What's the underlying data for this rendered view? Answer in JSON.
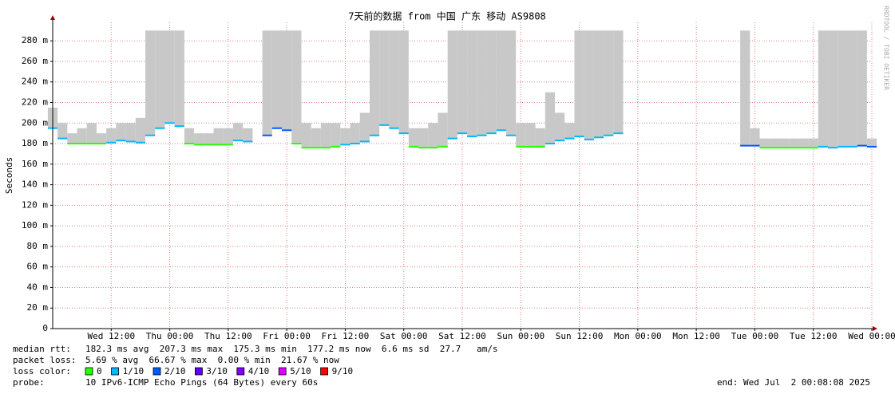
{
  "chart_data": {
    "type": "smokeping",
    "title": "7天前的数据 from 中国 广东 移动 AS9808",
    "y_label": "Seconds",
    "side_label": "RRDTOOL / TOBI OETIKER",
    "xlim": [
      0,
      168
    ],
    "xticks": [
      {
        "value": 12,
        "label": "Wed 12:00"
      },
      {
        "value": 24,
        "label": "Thu 00:00"
      },
      {
        "value": 36,
        "label": "Thu 12:00"
      },
      {
        "value": 48,
        "label": "Fri 00:00"
      },
      {
        "value": 60,
        "label": "Fri 12:00"
      },
      {
        "value": 72,
        "label": "Sat 00:00"
      },
      {
        "value": 84,
        "label": "Sat 12:00"
      },
      {
        "value": 96,
        "label": "Sun 00:00"
      },
      {
        "value": 108,
        "label": "Sun 12:00"
      },
      {
        "value": 120,
        "label": "Mon 00:00"
      },
      {
        "value": 132,
        "label": "Mon 12:00"
      },
      {
        "value": 144,
        "label": "Tue 00:00"
      },
      {
        "value": 156,
        "label": "Tue 12:00"
      },
      {
        "value": 168,
        "label": "Wed 00:00"
      }
    ],
    "ylim": [
      0,
      298
    ],
    "yticks": [
      0,
      {
        "value": 20,
        "label": "20 m"
      },
      {
        "value": 40,
        "label": "40 m"
      },
      {
        "value": 60,
        "label": "60 m"
      },
      {
        "value": 80,
        "label": "80 m"
      },
      {
        "value": 100,
        "label": "100 m"
      },
      {
        "value": 120,
        "label": "120 m"
      },
      {
        "value": 140,
        "label": "140 m"
      },
      {
        "value": 160,
        "label": "160 m"
      },
      {
        "value": 180,
        "label": "180 m"
      },
      {
        "value": 200,
        "label": "200 m"
      },
      {
        "value": 220,
        "label": "220 m"
      },
      {
        "value": 240,
        "label": "240 m"
      },
      {
        "value": 260,
        "label": "260 m"
      },
      {
        "value": 280,
        "label": "280 m"
      }
    ],
    "grid": true,
    "x": [
      0,
      2,
      4,
      6,
      8,
      10,
      12,
      14,
      16,
      18,
      20,
      22,
      24,
      26,
      28,
      30,
      32,
      34,
      36,
      38,
      40,
      42,
      44,
      46,
      48,
      50,
      52,
      54,
      56,
      58,
      60,
      62,
      64,
      66,
      68,
      70,
      72,
      74,
      76,
      78,
      80,
      82,
      84,
      86,
      88,
      90,
      92,
      94,
      96,
      98,
      100,
      102,
      104,
      106,
      108,
      110,
      112,
      114,
      116,
      118,
      120,
      122,
      124,
      126,
      128,
      130,
      132,
      134,
      136,
      138,
      140,
      142,
      144,
      146,
      148,
      150,
      152,
      154,
      156,
      158,
      160,
      162,
      164,
      166,
      168
    ],
    "series": [
      {
        "name": "median rtt:",
        "color": "#000000",
        "values": [
          195,
          185,
          180,
          180,
          180,
          180,
          181,
          183,
          182,
          181,
          188,
          195,
          200,
          197,
          180,
          179,
          179,
          179,
          179,
          183,
          182,
          null,
          188,
          195,
          193,
          180,
          176,
          176,
          176,
          177,
          179,
          180,
          182,
          188,
          198,
          195,
          190,
          177,
          176,
          176,
          177,
          185,
          190,
          187,
          188,
          190,
          193,
          188,
          177,
          177,
          177,
          180,
          183,
          185,
          187,
          184,
          186,
          188,
          190,
          null,
          null,
          null,
          null,
          null,
          null,
          null,
          null,
          null,
          null,
          null,
          null,
          178,
          178,
          176,
          176,
          176,
          176,
          176,
          176,
          177,
          176,
          177,
          177,
          178,
          177
        ]
      }
    ],
    "smoke_max": [
      215,
      200,
      190,
      195,
      200,
      190,
      195,
      200,
      200,
      205,
      290,
      290,
      290,
      290,
      195,
      190,
      190,
      195,
      195,
      200,
      195,
      null,
      290,
      290,
      290,
      290,
      200,
      195,
      200,
      200,
      195,
      200,
      210,
      290,
      290,
      290,
      290,
      195,
      195,
      200,
      210,
      290,
      290,
      290,
      290,
      290,
      290,
      290,
      200,
      200,
      195,
      230,
      210,
      200,
      290,
      290,
      290,
      290,
      290,
      null,
      null,
      null,
      null,
      null,
      null,
      null,
      null,
      null,
      null,
      null,
      null,
      290,
      195,
      185,
      185,
      185,
      185,
      185,
      185,
      290,
      290,
      290,
      290,
      290,
      185
    ],
    "loss": [
      1,
      1,
      0,
      0,
      0,
      0,
      1,
      1,
      1,
      1,
      1,
      1,
      1,
      1,
      0,
      0,
      0,
      0,
      0,
      1,
      1,
      null,
      2,
      2,
      2,
      0,
      0,
      0,
      0,
      0,
      1,
      1,
      1,
      1,
      1,
      1,
      1,
      0,
      0,
      0,
      0,
      1,
      1,
      1,
      1,
      1,
      1,
      1,
      0,
      0,
      0,
      1,
      1,
      1,
      1,
      1,
      1,
      1,
      1,
      null,
      null,
      null,
      null,
      null,
      null,
      null,
      null,
      null,
      null,
      null,
      null,
      2,
      2,
      0,
      0,
      0,
      0,
      0,
      0,
      1,
      1,
      1,
      1,
      2,
      2
    ],
    "median_stats": "182.3 ms avg  207.3 ms max  175.3 ms min  177.2 ms now  6.6 ms sd  27.7   am/s",
    "packet_loss_label": "packet loss:",
    "packet_loss_stats": "5.69 % avg  66.67 % max  0.00 % min  21.67 % now",
    "loss_color_label": "loss color:",
    "loss_colors": [
      {
        "label": "0",
        "color": "#26ff00"
      },
      {
        "label": "1/10",
        "color": "#00b8ff"
      },
      {
        "label": "2/10",
        "color": "#0059ff"
      },
      {
        "label": "3/10",
        "color": "#5e00ff"
      },
      {
        "label": "4/10",
        "color": "#7e00ff"
      },
      {
        "label": "5/10",
        "color": "#dd00ff"
      },
      {
        "label": "9/10",
        "color": "#ff0000"
      }
    ],
    "probe_label": "probe:",
    "probe": "10 IPv6-ICMP Echo Pings (64 Bytes) every 60s",
    "end": "end: Wed Jul  2 00:08:08 2025"
  }
}
